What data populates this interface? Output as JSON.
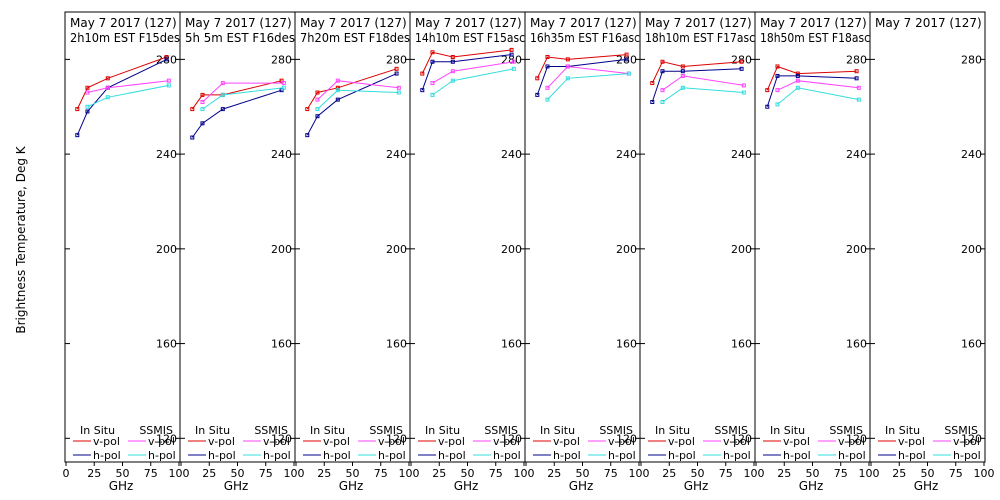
{
  "y_axis_label": "Brightness Temperature, Deg K",
  "x_axis_label": "GHz",
  "legend": {
    "in_situ_title": "In Situ",
    "ssmis_title": "SSMIS",
    "vpol_label": "v-pol",
    "hpol_label": "h-pol"
  },
  "colors": {
    "insitu_v": "#dd0000",
    "insitu_h": "#00008b",
    "ssmis_v": "#ff44ff",
    "ssmis_h": "#33dddd"
  },
  "chart_data": {
    "type": "line",
    "ylim": [
      110,
      300
    ],
    "yticks": [
      120,
      160,
      200,
      240,
      280
    ],
    "xlim": [
      0,
      100
    ],
    "xticks": [
      0,
      25,
      50,
      75,
      100
    ],
    "xtick_labels": [
      "0",
      "25",
      "50",
      "75",
      "100"
    ],
    "panels": [
      {
        "title": "May 7 2017 (127)",
        "subtitle": "2h10m  EST F15des",
        "insitu_v": {
          "x": [
            10,
            19,
            37,
            89
          ],
          "y": [
            259,
            268,
            272,
            281
          ]
        },
        "insitu_h": {
          "x": [
            10,
            19,
            37,
            89
          ],
          "y": [
            248,
            258,
            268,
            280
          ]
        },
        "ssmis_v": {
          "x": [
            19,
            37,
            91
          ],
          "y": [
            266,
            268,
            271
          ]
        },
        "ssmis_h": {
          "x": [
            19,
            37,
            91
          ],
          "y": [
            260,
            264,
            269
          ]
        }
      },
      {
        "title": "May 7 2017 (127)",
        "subtitle": "5h 5m  EST F16des",
        "insitu_v": {
          "x": [
            10,
            19,
            37,
            89
          ],
          "y": [
            259,
            265,
            265,
            271
          ]
        },
        "insitu_h": {
          "x": [
            10,
            19,
            37,
            89
          ],
          "y": [
            247,
            253,
            259,
            267
          ]
        },
        "ssmis_v": {
          "x": [
            19,
            37,
            91
          ],
          "y": [
            262,
            270,
            270
          ]
        },
        "ssmis_h": {
          "x": [
            19,
            37,
            91
          ],
          "y": [
            259,
            265,
            268
          ]
        }
      },
      {
        "title": "May 7 2017 (127)",
        "subtitle": "7h20m  EST F18des",
        "insitu_v": {
          "x": [
            10,
            19,
            37,
            89
          ],
          "y": [
            259,
            266,
            268,
            276
          ]
        },
        "insitu_h": {
          "x": [
            10,
            19,
            37,
            89
          ],
          "y": [
            248,
            256,
            263,
            274
          ]
        },
        "ssmis_v": {
          "x": [
            19,
            37,
            91
          ],
          "y": [
            263,
            271,
            268
          ]
        },
        "ssmis_h": {
          "x": [
            19,
            37,
            91
          ],
          "y": [
            259,
            267,
            266
          ]
        }
      },
      {
        "title": "May 7 2017 (127)",
        "subtitle": "14h10m  EST F15asc",
        "insitu_v": {
          "x": [
            10,
            19,
            37,
            89
          ],
          "y": [
            274,
            283,
            281,
            284
          ]
        },
        "insitu_h": {
          "x": [
            10,
            19,
            37,
            89
          ],
          "y": [
            267,
            279,
            279,
            282
          ]
        },
        "ssmis_v": {
          "x": [
            19,
            37,
            91
          ],
          "y": [
            270,
            275,
            279
          ]
        },
        "ssmis_h": {
          "x": [
            19,
            37,
            91
          ],
          "y": [
            265,
            271,
            276
          ]
        }
      },
      {
        "title": "May 7 2017 (127)",
        "subtitle": "16h35m  EST F16asc",
        "insitu_v": {
          "x": [
            10,
            19,
            37,
            89
          ],
          "y": [
            272,
            281,
            280,
            282
          ]
        },
        "insitu_h": {
          "x": [
            10,
            19,
            37,
            89
          ],
          "y": [
            265,
            277,
            277,
            280
          ]
        },
        "ssmis_v": {
          "x": [
            19,
            37,
            91
          ],
          "y": [
            268,
            277,
            274
          ]
        },
        "ssmis_h": {
          "x": [
            19,
            37,
            91
          ],
          "y": [
            263,
            272,
            274
          ]
        }
      },
      {
        "title": "May 7 2017 (127)",
        "subtitle": "18h10m  EST F17asc",
        "insitu_v": {
          "x": [
            10,
            19,
            37,
            89
          ],
          "y": [
            270,
            279,
            277,
            279
          ]
        },
        "insitu_h": {
          "x": [
            10,
            19,
            37,
            89
          ],
          "y": [
            262,
            275,
            275,
            276
          ]
        },
        "ssmis_v": {
          "x": [
            19,
            37,
            91
          ],
          "y": [
            267,
            273,
            269
          ]
        },
        "ssmis_h": {
          "x": [
            19,
            37,
            91
          ],
          "y": [
            262,
            268,
            266
          ]
        }
      },
      {
        "title": "May 7 2017 (127)",
        "subtitle": "18h50m  EST F18asc",
        "insitu_v": {
          "x": [
            10,
            19,
            37,
            89
          ],
          "y": [
            267,
            277,
            274,
            275
          ]
        },
        "insitu_h": {
          "x": [
            10,
            19,
            37,
            89
          ],
          "y": [
            260,
            273,
            273,
            272
          ]
        },
        "ssmis_v": {
          "x": [
            19,
            37,
            91
          ],
          "y": [
            267,
            271,
            268
          ]
        },
        "ssmis_h": {
          "x": [
            19,
            37,
            91
          ],
          "y": [
            261,
            268,
            263
          ]
        }
      },
      {
        "title": "May 7 2017 (127)",
        "subtitle": "",
        "insitu_v": {
          "x": [],
          "y": []
        },
        "insitu_h": {
          "x": [],
          "y": []
        },
        "ssmis_v": {
          "x": [],
          "y": []
        },
        "ssmis_h": {
          "x": [],
          "y": []
        }
      }
    ]
  }
}
